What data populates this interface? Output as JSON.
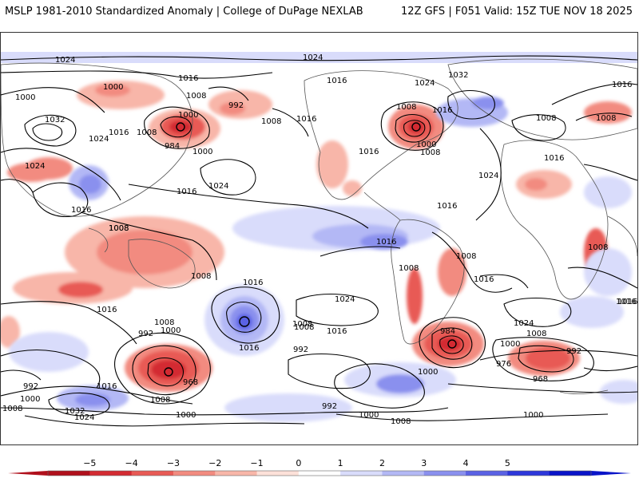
{
  "header": {
    "title_left": "MSLP 1981-2010 Standardized Anomaly | College of DuPage NEXLAB",
    "title_right": "12Z GFS | F051 Valid: 15Z TUE NOV 18 2025"
  },
  "map": {
    "isobar_labels": [
      "1024",
      "1024",
      "1016",
      "1016",
      "1008",
      "1000",
      "1000",
      "992",
      "1000",
      "1008",
      "984",
      "1000",
      "1032",
      "1024",
      "1016",
      "1008",
      "1024",
      "1016",
      "1008",
      "1016",
      "1024",
      "1016",
      "1032",
      "1024",
      "1016",
      "1008",
      "1000",
      "1008",
      "1016",
      "1016",
      "1016",
      "1016",
      "1008",
      "1008",
      "1008",
      "1008",
      "1016",
      "1008",
      "1016",
      "1024",
      "1016",
      "1008",
      "1024",
      "1016",
      "1016",
      "1008",
      "1016",
      "992",
      "1000",
      "1008",
      "1024",
      "1008",
      "1016",
      "992",
      "984",
      "1000",
      "1008",
      "1008",
      "1000",
      "992",
      "976",
      "968",
      "968",
      "1016",
      "992",
      "1000",
      "1008",
      "1032",
      "1024",
      "1008",
      "1000",
      "992",
      "1000",
      "1008",
      "1000",
      "1016"
    ]
  },
  "legend": {
    "ticks": [
      "−5",
      "−4",
      "−3",
      "−2",
      "−1",
      "0",
      "1",
      "2",
      "3",
      "4",
      "5"
    ],
    "colors": [
      "#b0101c",
      "#d32b32",
      "#e85a55",
      "#f28b80",
      "#f8b6a9",
      "#fde1d9",
      "#ffffff",
      "#d9dcfb",
      "#b3b8f5",
      "#8a90ee",
      "#5a62e4",
      "#2d37da",
      "#0a14c8"
    ]
  }
}
